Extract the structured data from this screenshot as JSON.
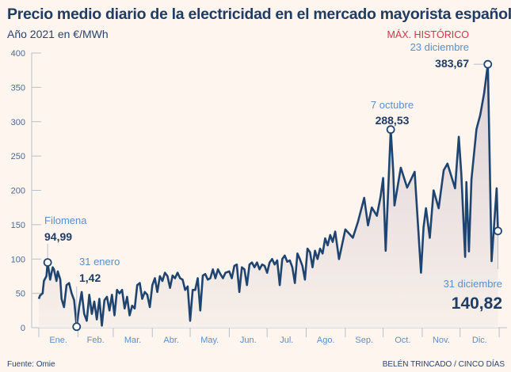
{
  "colors": {
    "line": "#1f4470",
    "label_light": "#5b8fc9",
    "highlight_red": "#d9304a",
    "background": "#fdf5ee"
  },
  "footer": {
    "source": "Fuente: Omie",
    "credit": "BELÉN TRINCADO / CINCO DÍAS"
  },
  "chart_data": {
    "type": "area",
    "title": "Precio medio diario de la electricidad en el mercado mayorista español",
    "subtitle": "Año 2021 en €/MWh",
    "xlabel": "",
    "ylabel": "",
    "ylim": [
      0,
      400
    ],
    "yticks": [
      0,
      50,
      100,
      150,
      200,
      250,
      300,
      350,
      400
    ],
    "month_labels": [
      "Ene.",
      "Feb.",
      "Mar.",
      "Abr.",
      "May.",
      "Jun.",
      "Jul.",
      "Ago.",
      "Sep.",
      "Oct.",
      "Nov.",
      "Dic."
    ],
    "grid": false,
    "annotations": [
      {
        "date": "2021-01-08",
        "value": 94.99,
        "label": "Filomena",
        "value_label": "94,99"
      },
      {
        "date": "2021-01-31",
        "value": 1.42,
        "label": "31 enero",
        "value_label": "1,42"
      },
      {
        "date": "2021-10-07",
        "value": 288.53,
        "label": "7 octubre",
        "value_label": "288,53"
      },
      {
        "date": "2021-12-23",
        "value": 383.67,
        "tag": "MÁX. HISTÓRICO",
        "label": "23 diciembre",
        "value_label": "383,67"
      },
      {
        "date": "2021-12-31",
        "value": 140.82,
        "label": "31 diciembre",
        "value_label": "140,82"
      }
    ],
    "series": [
      {
        "dates": [
          "2021-01-01",
          "2021-01-02",
          "2021-01-04",
          "2021-01-05",
          "2021-01-07",
          "2021-01-08",
          "2021-01-10",
          "2021-01-12",
          "2021-01-13",
          "2021-01-15",
          "2021-01-16",
          "2021-01-18",
          "2021-01-19",
          "2021-01-21",
          "2021-01-23",
          "2021-01-25",
          "2021-01-27",
          "2021-01-29",
          "2021-01-31",
          "2021-02-02",
          "2021-02-04",
          "2021-02-06",
          "2021-02-08",
          "2021-02-10",
          "2021-02-12",
          "2021-02-14",
          "2021-02-16",
          "2021-02-18",
          "2021-02-20",
          "2021-02-22",
          "2021-02-24",
          "2021-02-26",
          "2021-02-28",
          "2021-03-02",
          "2021-03-04",
          "2021-03-06",
          "2021-03-08",
          "2021-03-10",
          "2021-03-12",
          "2021-03-14",
          "2021-03-16",
          "2021-03-18",
          "2021-03-20",
          "2021-03-22",
          "2021-03-24",
          "2021-03-26",
          "2021-03-28",
          "2021-03-30",
          "2021-04-01",
          "2021-04-03",
          "2021-04-05",
          "2021-04-07",
          "2021-04-09",
          "2021-04-11",
          "2021-04-13",
          "2021-04-15",
          "2021-04-17",
          "2021-04-19",
          "2021-04-21",
          "2021-04-23",
          "2021-04-25",
          "2021-04-27",
          "2021-04-29",
          "2021-05-01",
          "2021-05-03",
          "2021-05-05",
          "2021-05-07",
          "2021-05-09",
          "2021-05-11",
          "2021-05-13",
          "2021-05-15",
          "2021-05-17",
          "2021-05-19",
          "2021-05-21",
          "2021-05-23",
          "2021-05-25",
          "2021-05-27",
          "2021-05-29",
          "2021-06-01",
          "2021-06-03",
          "2021-06-05",
          "2021-06-07",
          "2021-06-09",
          "2021-06-11",
          "2021-06-13",
          "2021-06-15",
          "2021-06-17",
          "2021-06-19",
          "2021-06-21",
          "2021-06-23",
          "2021-06-25",
          "2021-06-27",
          "2021-06-29",
          "2021-07-01",
          "2021-07-03",
          "2021-07-05",
          "2021-07-07",
          "2021-07-09",
          "2021-07-11",
          "2021-07-13",
          "2021-07-15",
          "2021-07-17",
          "2021-07-19",
          "2021-07-21",
          "2021-07-23",
          "2021-07-25",
          "2021-07-27",
          "2021-07-29",
          "2021-07-31",
          "2021-08-02",
          "2021-08-04",
          "2021-08-06",
          "2021-08-08",
          "2021-08-10",
          "2021-08-12",
          "2021-08-14",
          "2021-08-16",
          "2021-08-18",
          "2021-08-20",
          "2021-08-22",
          "2021-08-24",
          "2021-08-27",
          "2021-09-01",
          "2021-09-07",
          "2021-09-11",
          "2021-09-16",
          "2021-09-19",
          "2021-09-22",
          "2021-09-26",
          "2021-09-29",
          "2021-10-01",
          "2021-10-03",
          "2021-10-07",
          "2021-10-09",
          "2021-10-10",
          "2021-10-15",
          "2021-10-20",
          "2021-10-26",
          "2021-10-31",
          "2021-11-02",
          "2021-11-04",
          "2021-11-07",
          "2021-11-10",
          "2021-11-14",
          "2021-11-18",
          "2021-11-21",
          "2021-11-27",
          "2021-11-30",
          "2021-12-02",
          "2021-12-05",
          "2021-12-06",
          "2021-12-08",
          "2021-12-10",
          "2021-12-14",
          "2021-12-17",
          "2021-12-20",
          "2021-12-23",
          "2021-12-26",
          "2021-12-30",
          "2021-12-31"
        ],
        "values": [
          42,
          47,
          50,
          68,
          75,
          94.99,
          70,
          88,
          85,
          68,
          82,
          70,
          42,
          30,
          62,
          65,
          50,
          40,
          1.42,
          30,
          52,
          20,
          10,
          48,
          20,
          38,
          12,
          42,
          3,
          40,
          45,
          25,
          48,
          18,
          55,
          50,
          55,
          28,
          45,
          18,
          32,
          28,
          62,
          65,
          42,
          52,
          48,
          30,
          62,
          72,
          52,
          75,
          68,
          80,
          75,
          58,
          76,
          72,
          80,
          72,
          70,
          55,
          60,
          10,
          55,
          55,
          72,
          25,
          76,
          78,
          70,
          72,
          85,
          72,
          85,
          78,
          72,
          80,
          82,
          72,
          90,
          92,
          52,
          88,
          85,
          62,
          92,
          95,
          88,
          95,
          85,
          92,
          90,
          80,
          95,
          100,
          92,
          98,
          62,
          100,
          105,
          96,
          98,
          88,
          65,
          108,
          100,
          90,
          70,
          115,
          110,
          88,
          112,
          100,
          115,
          108,
          130,
          120,
          135,
          125,
          140,
          100,
          143,
          131,
          154,
          189,
          149,
          175,
          163,
          191,
          218,
          112,
          288.53,
          227,
          178,
          233,
          204,
          227,
          80,
          146,
          174,
          131,
          200,
          174,
          229,
          239,
          203,
          278,
          224,
          103,
          212,
          111,
          216,
          289,
          310,
          341,
          383.67,
          97,
          203,
          140.82
        ]
      }
    ]
  }
}
